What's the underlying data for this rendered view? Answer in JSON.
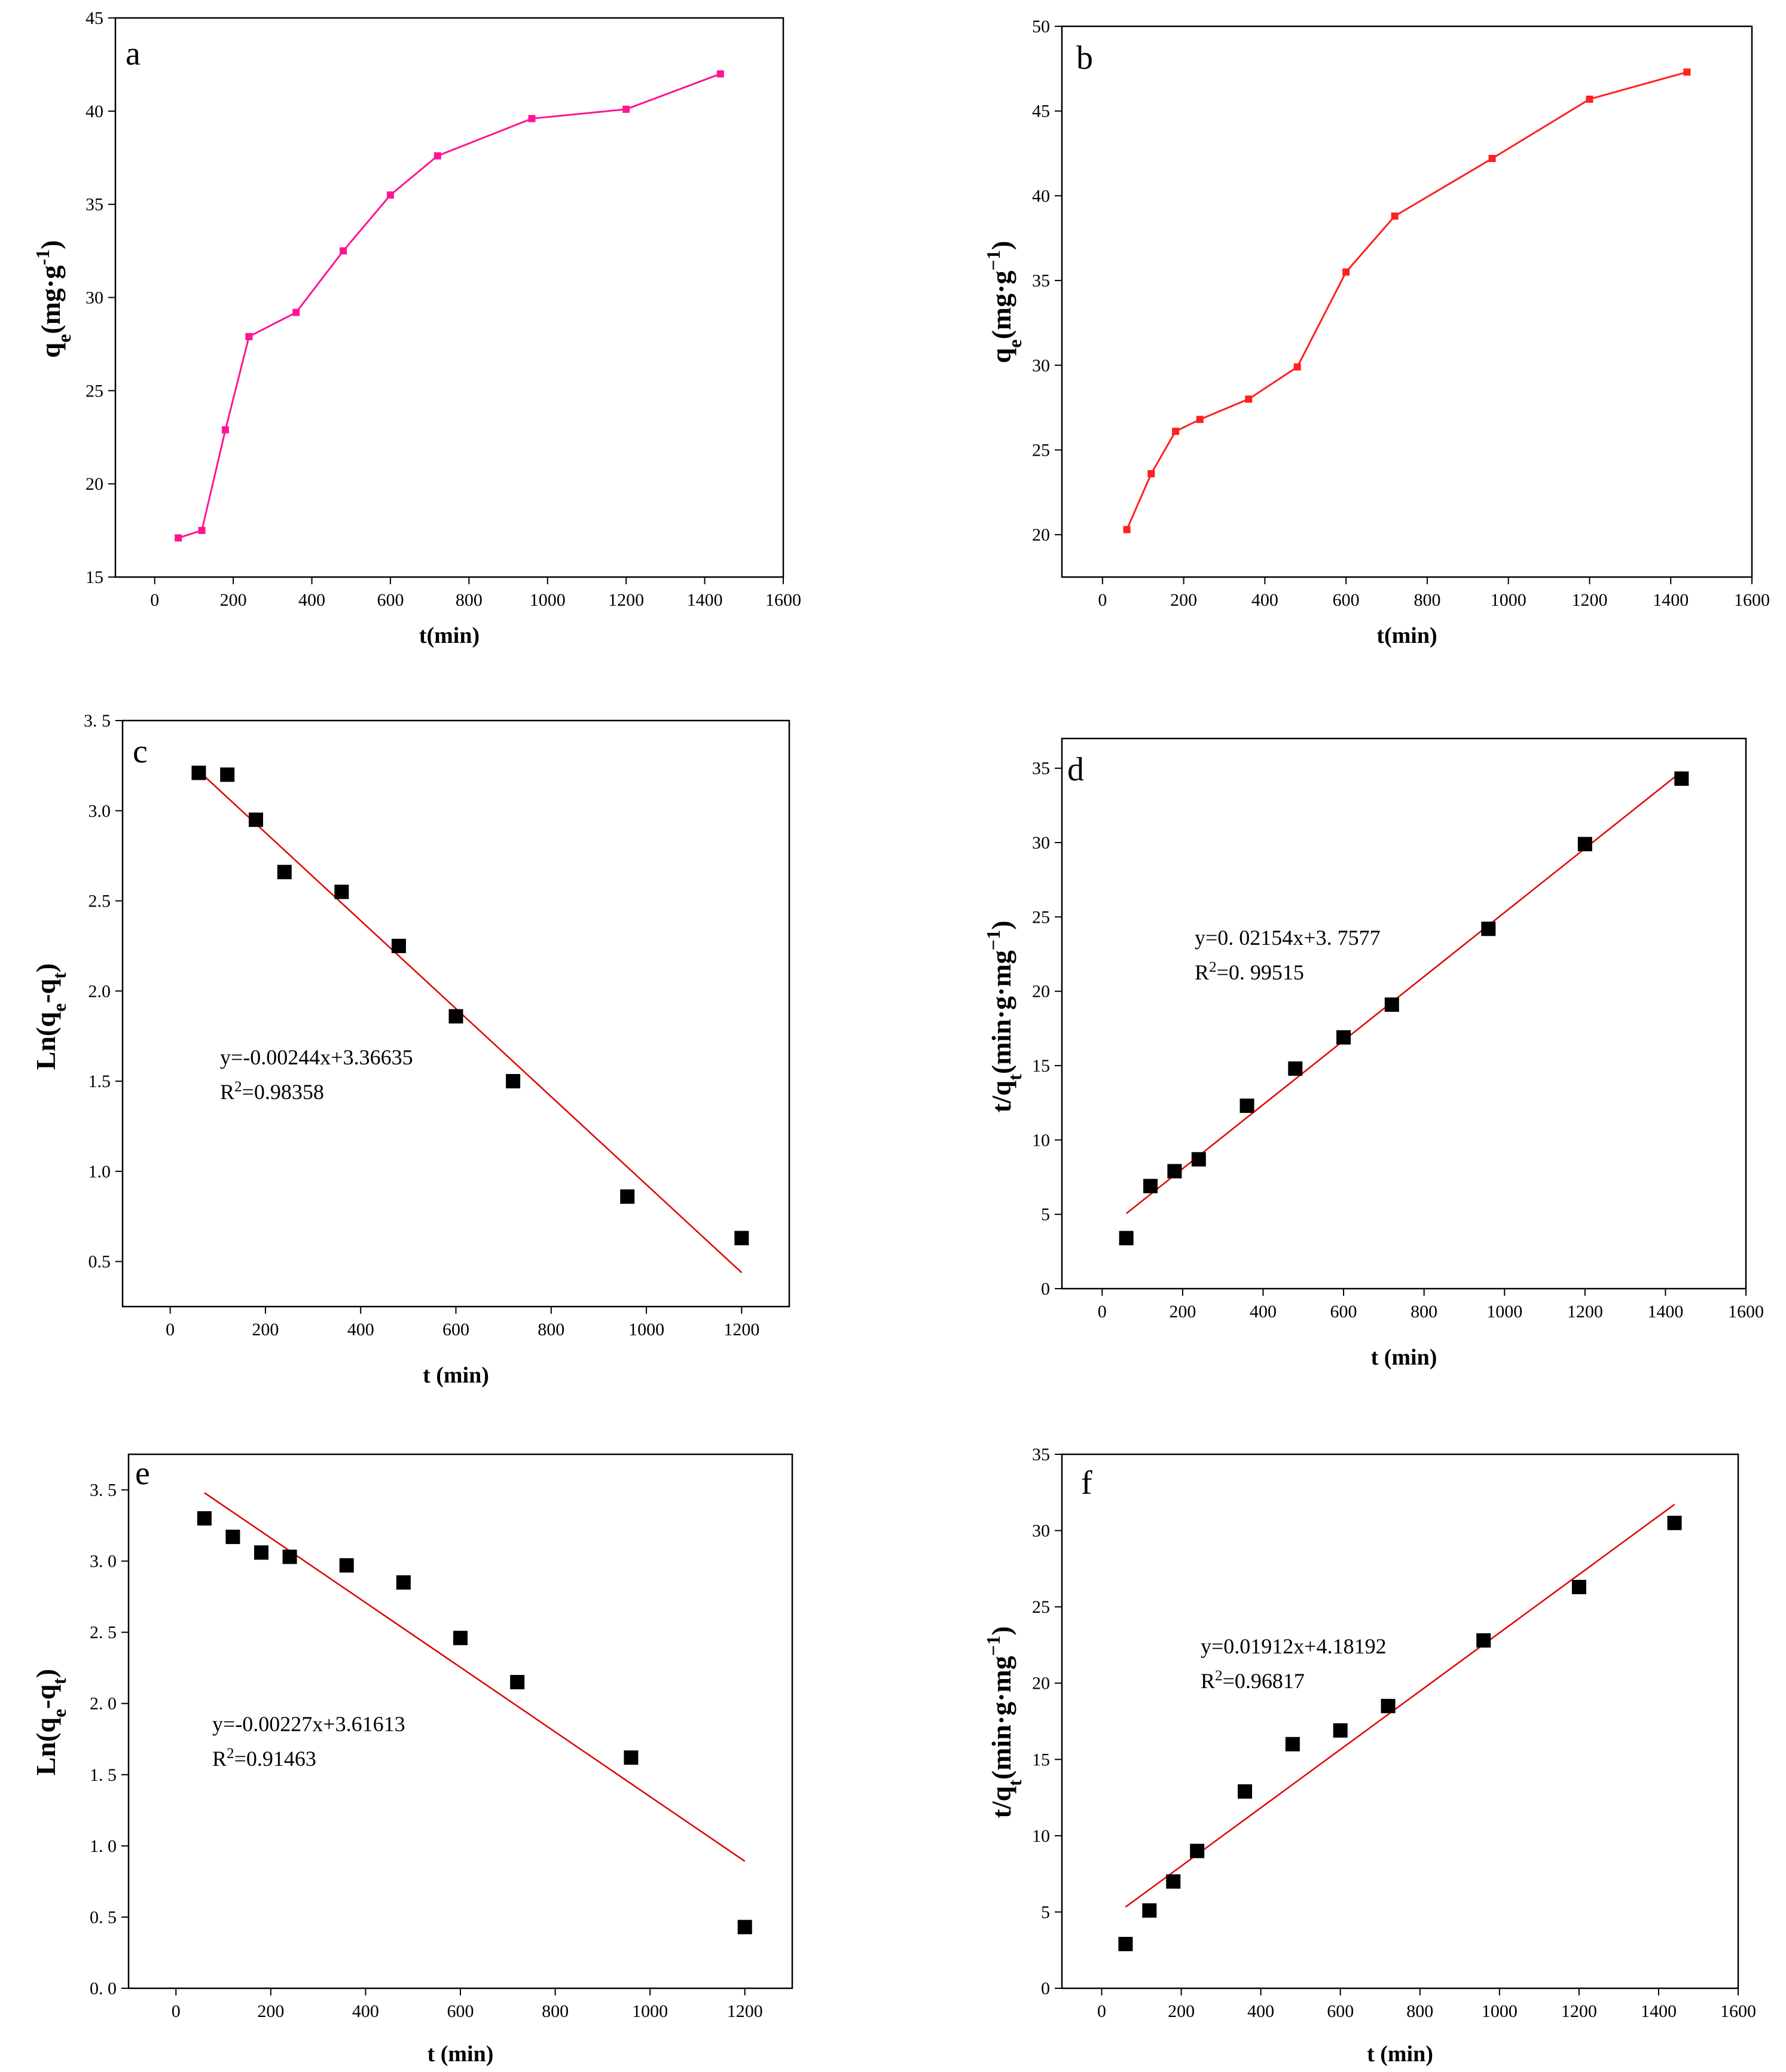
{
  "chart_data": [
    {
      "id": "a",
      "panel_label": "a",
      "type": "line",
      "color": "#ff1493",
      "xlim": [
        -100,
        1600
      ],
      "xticks": [
        0,
        200,
        400,
        600,
        800,
        1000,
        1200,
        1400,
        1600
      ],
      "ylim": [
        15,
        45
      ],
      "yticks": [
        15,
        20,
        25,
        30,
        35,
        40,
        45
      ],
      "xlabel": "t(min)",
      "ylabel": {
        "parts": [
          [
            "q",
            ""
          ],
          [
            "e",
            "sub"
          ],
          [
            "(mg·g",
            ""
          ],
          [
            "-1",
            "sup"
          ],
          [
            ")",
            ""
          ]
        ]
      },
      "x": [
        60,
        120,
        180,
        240,
        360,
        480,
        600,
        720,
        960,
        1200,
        1440
      ],
      "y": [
        17.1,
        17.5,
        22.9,
        27.9,
        29.2,
        32.5,
        35.5,
        37.6,
        39.6,
        40.1,
        42.0
      ]
    },
    {
      "id": "b",
      "panel_label": "b",
      "type": "line",
      "color": "#ff2020",
      "xlim": [
        -100,
        1600
      ],
      "xticks": [
        0,
        200,
        400,
        600,
        800,
        1000,
        1200,
        1400,
        1600
      ],
      "ylim": [
        17.5,
        50
      ],
      "yticks": [
        20,
        25,
        30,
        35,
        40,
        45,
        50
      ],
      "xlabel": "t(min)",
      "ylabel": {
        "parts": [
          [
            "q",
            ""
          ],
          [
            "e",
            "sub"
          ],
          [
            "(mg·g",
            ""
          ],
          [
            "−1",
            "sup"
          ],
          [
            ")",
            ""
          ]
        ]
      },
      "x": [
        60,
        120,
        180,
        240,
        360,
        480,
        600,
        720,
        960,
        1200,
        1440
      ],
      "y": [
        20.3,
        23.6,
        26.1,
        26.8,
        28.0,
        29.9,
        35.5,
        38.8,
        42.2,
        45.7,
        47.3
      ]
    },
    {
      "id": "c",
      "panel_label": "c",
      "type": "scatter",
      "fit_color": "#e00000",
      "xlim": [
        -100,
        1300
      ],
      "xticks": [
        0,
        200,
        400,
        600,
        800,
        1000,
        1200
      ],
      "ylim": [
        0.25,
        3.5
      ],
      "yticks": [
        0.5,
        1.0,
        1.5,
        2.0,
        2.5,
        3.0,
        3.5
      ],
      "tick_labels_y": [
        "0.5",
        "1.0",
        "1.5",
        "2.0",
        "2.5",
        "3.0",
        "3. 5"
      ],
      "xlabel": "t (min)",
      "ylabel": {
        "parts": [
          [
            "Ln(q",
            ""
          ],
          [
            "e",
            "sub"
          ],
          [
            "-q",
            ""
          ],
          [
            "t",
            "sub"
          ],
          [
            ")",
            ""
          ]
        ]
      },
      "x": [
        60,
        120,
        180,
        240,
        360,
        480,
        600,
        720,
        960,
        1200
      ],
      "y": [
        3.21,
        3.2,
        2.95,
        2.66,
        2.55,
        2.25,
        1.86,
        1.5,
        0.86,
        0.63
      ],
      "fit": {
        "slope": -0.00244,
        "intercept": 3.36635,
        "x_range": [
          60,
          1200
        ]
      },
      "equation": "y=-0.00244x+3.36635",
      "r2_label": "R",
      "r2_sup": "2",
      "r2_value": "=0.98358"
    },
    {
      "id": "d",
      "panel_label": "d",
      "type": "scatter",
      "fit_color": "#e00000",
      "xlim": [
        -100,
        1600
      ],
      "xticks": [
        0,
        200,
        400,
        600,
        800,
        1000,
        1200,
        1400,
        1600
      ],
      "ylim": [
        0,
        37
      ],
      "yticks": [
        0,
        5,
        10,
        15,
        20,
        25,
        30,
        35
      ],
      "xlabel": "t (min)",
      "ylabel": {
        "parts": [
          [
            "t/q",
            ""
          ],
          [
            "t",
            "sub"
          ],
          [
            "(min·g·mg",
            ""
          ],
          [
            "−1",
            "sup"
          ],
          [
            ")",
            ""
          ]
        ]
      },
      "x": [
        60,
        120,
        180,
        240,
        360,
        480,
        600,
        720,
        960,
        1200,
        1440
      ],
      "y": [
        3.4,
        6.9,
        7.9,
        8.7,
        12.3,
        14.8,
        16.9,
        19.1,
        24.2,
        29.9,
        34.3
      ],
      "fit": {
        "slope": 0.02154,
        "intercept": 3.7577,
        "x_range": [
          60,
          1440
        ]
      },
      "equation": "y=0. 02154x+3. 7577",
      "r2_label": "R",
      "r2_sup": "2",
      "r2_value": "=0. 99515"
    },
    {
      "id": "e",
      "panel_label": "e",
      "type": "scatter",
      "fit_color": "#e00000",
      "xlim": [
        -100,
        1300
      ],
      "xticks": [
        0,
        200,
        400,
        600,
        800,
        1000,
        1200
      ],
      "ylim": [
        0,
        3.75
      ],
      "yticks": [
        0.0,
        0.5,
        1.0,
        1.5,
        2.0,
        2.5,
        3.0,
        3.5
      ],
      "tick_labels_y": [
        "0. 0",
        "0. 5",
        "1. 0",
        "1. 5",
        "2. 0",
        "2. 5",
        "3. 0",
        "3. 5"
      ],
      "xlabel": "t (min)",
      "ylabel": {
        "parts": [
          [
            "Ln(q",
            ""
          ],
          [
            "e",
            "sub"
          ],
          [
            "-q",
            ""
          ],
          [
            "t",
            "sub"
          ],
          [
            ")",
            ""
          ]
        ]
      },
      "x": [
        60,
        120,
        180,
        240,
        360,
        480,
        600,
        720,
        960,
        1200
      ],
      "y": [
        3.3,
        3.17,
        3.06,
        3.03,
        2.97,
        2.85,
        2.46,
        2.15,
        1.62,
        0.43
      ],
      "fit": {
        "slope": -0.00227,
        "intercept": 3.61613,
        "x_range": [
          60,
          1200
        ]
      },
      "equation": "y=-0.00227x+3.61613",
      "r2_label": "R",
      "r2_sup": "2",
      "r2_value": "=0.91463"
    },
    {
      "id": "f",
      "panel_label": "f",
      "type": "scatter",
      "fit_color": "#e00000",
      "xlim": [
        -100,
        1600
      ],
      "xticks": [
        0,
        200,
        400,
        600,
        800,
        1000,
        1200,
        1400,
        1600
      ],
      "ylim": [
        0,
        35
      ],
      "yticks": [
        0,
        5,
        10,
        15,
        20,
        25,
        30,
        35
      ],
      "xlabel": "t (min)",
      "ylabel": {
        "parts": [
          [
            "t/q",
            ""
          ],
          [
            "t",
            "sub"
          ],
          [
            "(min·g·mg",
            ""
          ],
          [
            "−1",
            "sup"
          ],
          [
            ")",
            ""
          ]
        ]
      },
      "x": [
        60,
        120,
        180,
        240,
        360,
        480,
        600,
        720,
        960,
        1200,
        1440
      ],
      "y": [
        2.9,
        5.1,
        7.0,
        9.0,
        12.9,
        16.0,
        16.9,
        18.5,
        22.8,
        26.3,
        30.5
      ],
      "fit": {
        "slope": 0.01912,
        "intercept": 4.18192,
        "x_range": [
          60,
          1440
        ]
      },
      "equation": "y=0.01912x+4.18192",
      "r2_label": "R",
      "r2_sup": "2",
      "r2_value": "=0.96817"
    }
  ]
}
